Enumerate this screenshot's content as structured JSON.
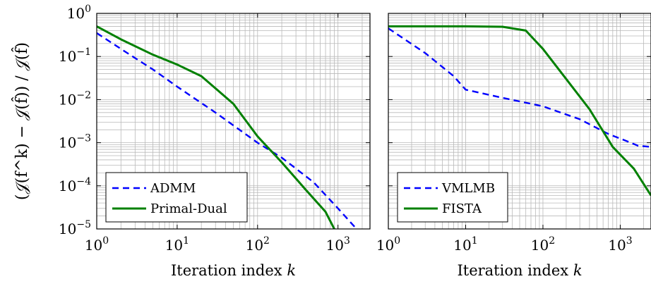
{
  "chart_data": [
    {
      "type": "line",
      "title": "",
      "xlabel": "Iteration index k",
      "ylabel": "(𝒥(f^k) − 𝒥(f̂)) / 𝒥(f̂)",
      "xscale": "log",
      "yscale": "log",
      "xlim": [
        1,
        2500
      ],
      "ylim": [
        1e-05,
        1
      ],
      "x_ticks": [
        {
          "value": 1,
          "base": "10",
          "exp": "0"
        },
        {
          "value": 10,
          "base": "10",
          "exp": "1"
        },
        {
          "value": 100,
          "base": "10",
          "exp": "2"
        },
        {
          "value": 1000,
          "base": "10",
          "exp": "3"
        }
      ],
      "y_ticks": [
        {
          "value": 1,
          "base": "10",
          "exp": "0"
        },
        {
          "value": 0.1,
          "base": "10",
          "exp": "−1"
        },
        {
          "value": 0.01,
          "base": "10",
          "exp": "−2"
        },
        {
          "value": 0.001,
          "base": "10",
          "exp": "−3"
        },
        {
          "value": 0.0001,
          "base": "10",
          "exp": "−4"
        },
        {
          "value": 1e-05,
          "base": "10",
          "exp": "−5"
        }
      ],
      "grid": true,
      "legend_position": "bottom-left",
      "series": [
        {
          "name": "ADMM",
          "color": "#0000ff",
          "style": "dashed",
          "points": [
            [
              1,
              0.35
            ],
            [
              2,
              0.15
            ],
            [
              5,
              0.05
            ],
            [
              10,
              0.02
            ],
            [
              30,
              0.005
            ],
            [
              100,
              0.001
            ],
            [
              200,
              0.00045
            ],
            [
              500,
              0.00012
            ],
            [
              1000,
              3e-05
            ],
            [
              1700,
              1e-05
            ]
          ]
        },
        {
          "name": "Primal-Dual",
          "color": "#008000",
          "style": "solid",
          "points": [
            [
              1,
              0.5
            ],
            [
              2,
              0.25
            ],
            [
              5,
              0.11
            ],
            [
              10,
              0.065
            ],
            [
              20,
              0.035
            ],
            [
              50,
              0.008
            ],
            [
              100,
              0.0014
            ],
            [
              200,
              0.00035
            ],
            [
              400,
              8e-05
            ],
            [
              700,
              2.5e-05
            ],
            [
              900,
              1e-05
            ]
          ]
        }
      ]
    },
    {
      "type": "line",
      "title": "",
      "xlabel": "Iteration index k",
      "ylabel": "",
      "xscale": "log",
      "yscale": "log",
      "xlim": [
        1,
        2500
      ],
      "ylim": [
        1e-05,
        1
      ],
      "x_ticks": [
        {
          "value": 1,
          "base": "10",
          "exp": "0"
        },
        {
          "value": 10,
          "base": "10",
          "exp": "1"
        },
        {
          "value": 100,
          "base": "10",
          "exp": "2"
        },
        {
          "value": 1000,
          "base": "10",
          "exp": "3"
        }
      ],
      "y_ticks": [],
      "grid": true,
      "legend_position": "bottom-left",
      "series": [
        {
          "name": "VMLMB",
          "color": "#0000ff",
          "style": "dashed",
          "points": [
            [
              1,
              0.45
            ],
            [
              3,
              0.12
            ],
            [
              7,
              0.035
            ],
            [
              10,
              0.017
            ],
            [
              30,
              0.011
            ],
            [
              100,
              0.007
            ],
            [
              300,
              0.0035
            ],
            [
              700,
              0.0016
            ],
            [
              1200,
              0.0011
            ],
            [
              1700,
              0.00085
            ],
            [
              2500,
              0.0008
            ]
          ]
        },
        {
          "name": "FISTA",
          "color": "#008000",
          "style": "solid",
          "points": [
            [
              1,
              0.5
            ],
            [
              10,
              0.5
            ],
            [
              30,
              0.49
            ],
            [
              60,
              0.4
            ],
            [
              100,
              0.15
            ],
            [
              200,
              0.03
            ],
            [
              400,
              0.006
            ],
            [
              800,
              0.0008
            ],
            [
              1500,
              0.00025
            ],
            [
              2500,
              6e-05
            ]
          ]
        }
      ]
    }
  ]
}
